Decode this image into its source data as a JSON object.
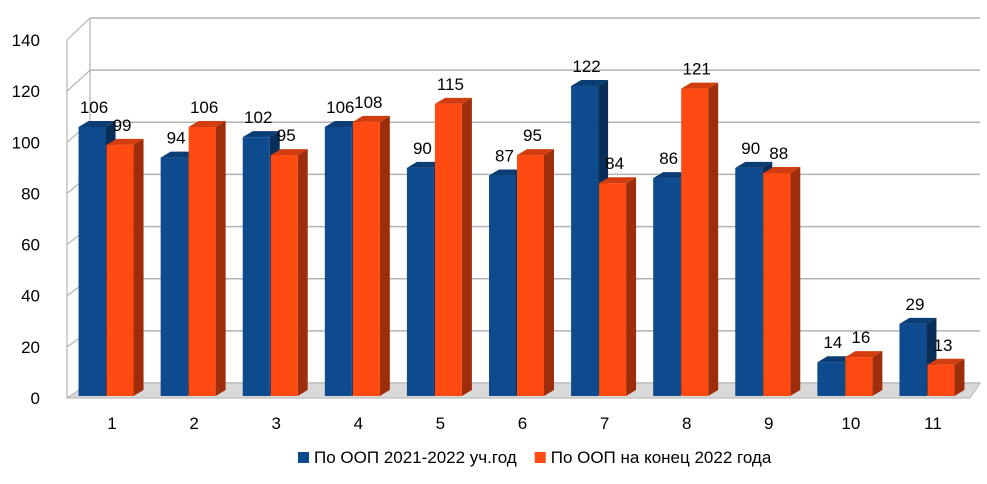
{
  "chart_data": {
    "type": "bar",
    "categories": [
      "1",
      "2",
      "3",
      "4",
      "5",
      "6",
      "7",
      "8",
      "9",
      "10",
      "11"
    ],
    "series": [
      {
        "name": "По ООП 2021-2022 уч.год",
        "color": "#0D4A8E",
        "values": [
          106,
          94,
          102,
          106,
          90,
          87,
          122,
          86,
          90,
          14,
          29
        ]
      },
      {
        "name": "По ООП на конец 2022 года",
        "color": "#FF4A12",
        "values": [
          99,
          106,
          95,
          108,
          115,
          95,
          84,
          121,
          88,
          16,
          13
        ]
      }
    ],
    "yticks": [
      "0",
      "20",
      "40",
      "60",
      "80",
      "100",
      "120",
      "140"
    ],
    "ylim": [
      0,
      140
    ],
    "grid": true,
    "legend_position": "bottom",
    "style": "3d-clustered-column"
  }
}
